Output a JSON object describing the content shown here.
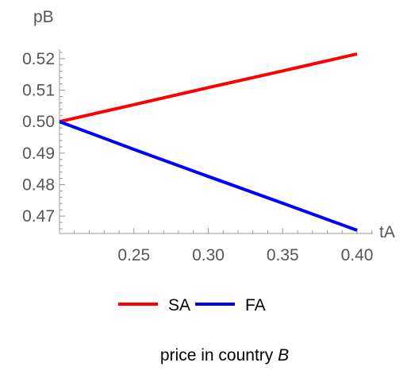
{
  "chart_data": {
    "type": "line",
    "xlabel": "tA",
    "ylabel": "pB",
    "xlim": [
      0.2,
      0.4
    ],
    "ylim": [
      0.4655,
      0.5235
    ],
    "xticks": [
      0.25,
      0.3,
      0.35,
      0.4
    ],
    "xtick_labels": [
      "0.25",
      "0.30",
      "0.35",
      "0.40"
    ],
    "yticks": [
      0.47,
      0.48,
      0.49,
      0.5,
      0.51,
      0.52
    ],
    "ytick_labels": [
      "0.47",
      "0.48",
      "0.49",
      "0.50",
      "0.51",
      "0.52"
    ],
    "grid": false,
    "legend": "bottom",
    "series": [
      {
        "name": "SA",
        "color": "#ff0000",
        "x": [
          0.2,
          0.25,
          0.3,
          0.35,
          0.4
        ],
        "y": [
          0.5,
          0.5054,
          0.5108,
          0.5161,
          0.5215
        ]
      },
      {
        "name": "FA",
        "color": "#0000ff",
        "x": [
          0.2,
          0.25,
          0.3,
          0.35,
          0.4
        ],
        "y": [
          0.5,
          0.4912,
          0.4826,
          0.4741,
          0.4655
        ]
      }
    ]
  },
  "caption": {
    "prefix": "price in country ",
    "emphasis": "B"
  }
}
